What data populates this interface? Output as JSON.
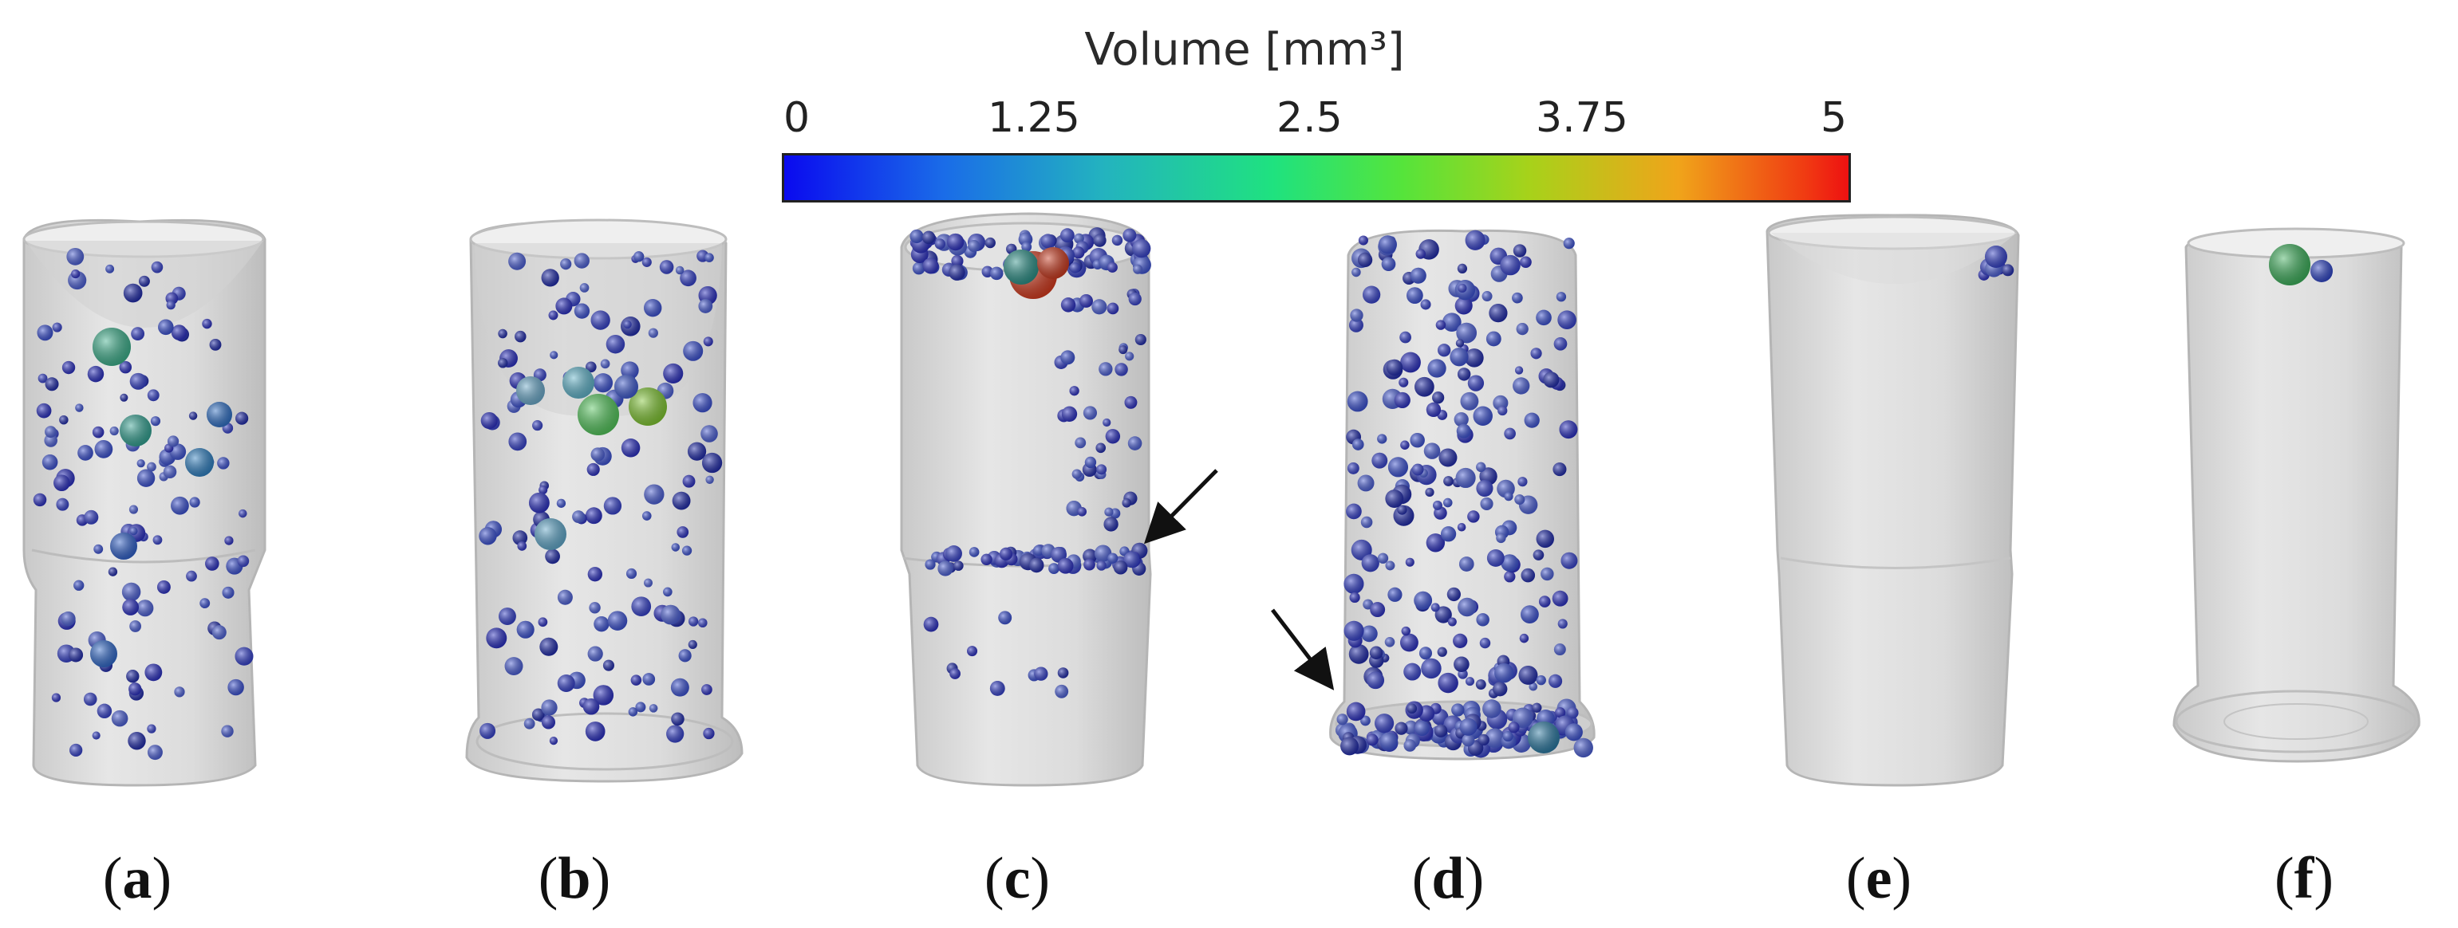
{
  "colorbar": {
    "title": "Volume [mm³]",
    "ticks": [
      "0",
      "1.25",
      "2.5",
      "3.75",
      "5"
    ],
    "min": 0,
    "max": 5,
    "colormap": [
      "#0a0aef",
      "#1a6ce8",
      "#23b3bf",
      "#1fe27f",
      "#55e43b",
      "#a7d21a",
      "#f0a41a",
      "#f03a12",
      "#ee1111"
    ]
  },
  "panels": [
    {
      "label_open": "(",
      "letter": "a",
      "label_close": ")"
    },
    {
      "label_open": "(",
      "letter": "b",
      "label_close": ")"
    },
    {
      "label_open": "(",
      "letter": "c",
      "label_close": ")"
    },
    {
      "label_open": "(",
      "letter": "d",
      "label_close": ")"
    },
    {
      "label_open": "(",
      "letter": "e",
      "label_close": ")"
    },
    {
      "label_open": "(",
      "letter": "f",
      "label_close": ")"
    }
  ],
  "colors": {
    "specimen_fill": "#d7d7d7",
    "specimen_edge": "#b8b8b8",
    "arrow": "#111111"
  }
}
